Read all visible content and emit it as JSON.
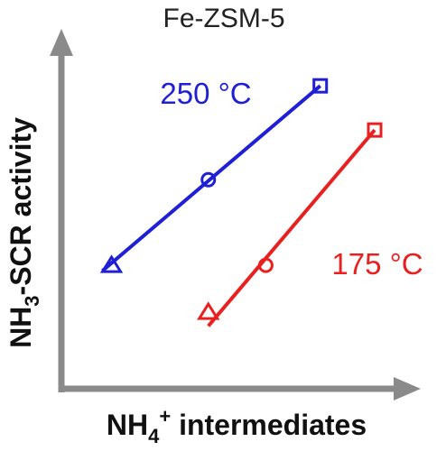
{
  "chart_data": {
    "type": "scatter",
    "title": "Fe-ZSM-5",
    "xlabel": {
      "base": "NH",
      "sub": "",
      "sup": "4",
      "supsign": "+",
      "rest": " intermediates"
    },
    "ylabel": {
      "base": "NH",
      "sub": "3",
      "rest": "-SCR activity"
    },
    "xlim": [
      0,
      10
    ],
    "ylim": [
      0,
      10
    ],
    "grid": false,
    "series": [
      {
        "name": "250 °C",
        "color": "#1f1fd6",
        "points": [
          {
            "x": 1.3,
            "y": 3.2,
            "marker": "triangle"
          },
          {
            "x": 4.5,
            "y": 6.3,
            "marker": "circle"
          },
          {
            "x": 8.2,
            "y": 9.7,
            "marker": "square"
          }
        ],
        "fit": [
          [
            1.0,
            3.0
          ],
          [
            8.2,
            9.7
          ]
        ]
      },
      {
        "name": "175 °C",
        "color": "#e82020",
        "points": [
          {
            "x": 4.5,
            "y": 1.5,
            "marker": "triangle"
          },
          {
            "x": 6.4,
            "y": 3.2,
            "marker": "circle"
          },
          {
            "x": 10.0,
            "y": 8.1,
            "marker": "square"
          }
        ],
        "fit": [
          [
            4.5,
            1.0
          ],
          [
            10.0,
            8.1
          ]
        ]
      }
    ]
  }
}
